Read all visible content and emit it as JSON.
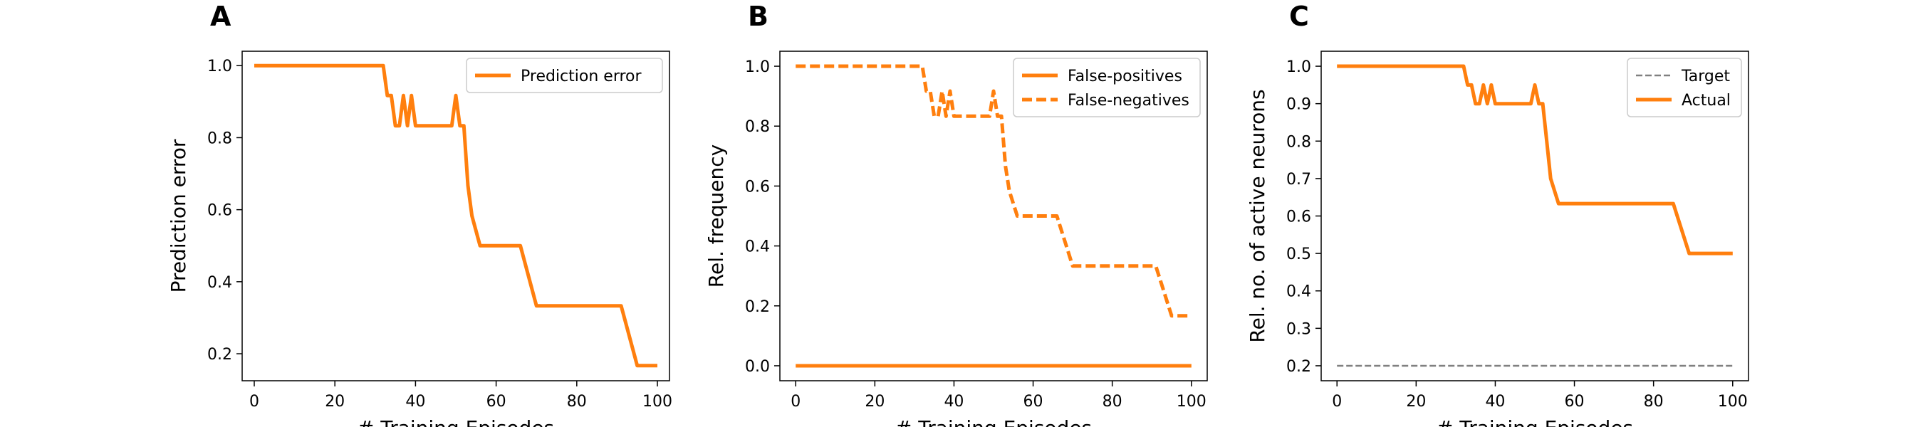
{
  "chart_data": [
    {
      "panel_label": "A",
      "type": "line",
      "xlabel": "# Training Episodes",
      "ylabel": "Prediction error",
      "xlim": [
        -3,
        103
      ],
      "ylim": [
        0.125,
        1.04
      ],
      "xticks": [
        0,
        20,
        40,
        60,
        80,
        100
      ],
      "yticks": [
        0.2,
        0.4,
        0.6,
        0.8,
        1.0
      ],
      "legend": "top-right",
      "series": [
        {
          "name": "Prediction error",
          "color": "#ff7f0e",
          "style": "solid",
          "x": [
            0,
            32,
            33,
            34,
            35,
            36,
            37,
            38,
            39,
            40,
            41,
            48,
            49,
            50,
            51,
            52,
            53,
            54,
            56,
            66,
            70,
            91,
            95,
            100
          ],
          "y": [
            1.0,
            1.0,
            0.917,
            0.917,
            0.833,
            0.833,
            0.917,
            0.833,
            0.917,
            0.833,
            0.833,
            0.833,
            0.833,
            0.917,
            0.833,
            0.833,
            0.667,
            0.583,
            0.5,
            0.5,
            0.333,
            0.333,
            0.167,
            0.167
          ]
        }
      ]
    },
    {
      "panel_label": "B",
      "type": "line",
      "xlabel": "# Training Episodes",
      "ylabel": "Rel. frequency",
      "xlim": [
        -4,
        104
      ],
      "ylim": [
        -0.05,
        1.05
      ],
      "xticks": [
        0,
        20,
        40,
        60,
        80,
        100
      ],
      "yticks": [
        0.0,
        0.2,
        0.4,
        0.6,
        0.8,
        1.0
      ],
      "legend": "top-right",
      "series": [
        {
          "name": "False-positives",
          "color": "#ff7f0e",
          "style": "solid",
          "x": [
            0,
            100
          ],
          "y": [
            0.0,
            0.0
          ]
        },
        {
          "name": "False-negatives",
          "color": "#ff7f0e",
          "style": "dashed",
          "x": [
            0,
            32,
            33,
            34,
            35,
            36,
            37,
            38,
            39,
            40,
            41,
            48,
            49,
            50,
            51,
            52,
            53,
            54,
            56,
            66,
            70,
            91,
            95,
            100
          ],
          "y": [
            1.0,
            1.0,
            0.917,
            0.917,
            0.833,
            0.833,
            0.917,
            0.833,
            0.917,
            0.833,
            0.833,
            0.833,
            0.833,
            0.917,
            0.833,
            0.833,
            0.667,
            0.583,
            0.5,
            0.5,
            0.333,
            0.333,
            0.167,
            0.167
          ]
        }
      ]
    },
    {
      "panel_label": "C",
      "type": "line",
      "xlabel": "# Training Episodes",
      "ylabel": "Rel. no. of active neurons",
      "xlim": [
        -4,
        104
      ],
      "ylim": [
        0.16,
        1.04
      ],
      "xticks": [
        0,
        20,
        40,
        60,
        80,
        100
      ],
      "yticks": [
        0.2,
        0.3,
        0.4,
        0.5,
        0.6,
        0.7,
        0.8,
        0.9,
        1.0
      ],
      "legend": "top-right",
      "series": [
        {
          "name": "Target",
          "color": "#808080",
          "style": "dashed-thin",
          "x": [
            0,
            100
          ],
          "y": [
            0.2,
            0.2
          ]
        },
        {
          "name": "Actual",
          "color": "#ff7f0e",
          "style": "solid",
          "x": [
            0,
            32,
            33,
            34,
            35,
            36,
            37,
            38,
            39,
            40,
            41,
            48,
            49,
            50,
            51,
            52,
            53,
            54,
            56,
            85,
            89,
            100
          ],
          "y": [
            1.0,
            1.0,
            0.95,
            0.95,
            0.9,
            0.9,
            0.95,
            0.9,
            0.95,
            0.9,
            0.9,
            0.9,
            0.9,
            0.95,
            0.9,
            0.9,
            0.8,
            0.7,
            0.633,
            0.633,
            0.5,
            0.5
          ]
        }
      ]
    }
  ]
}
